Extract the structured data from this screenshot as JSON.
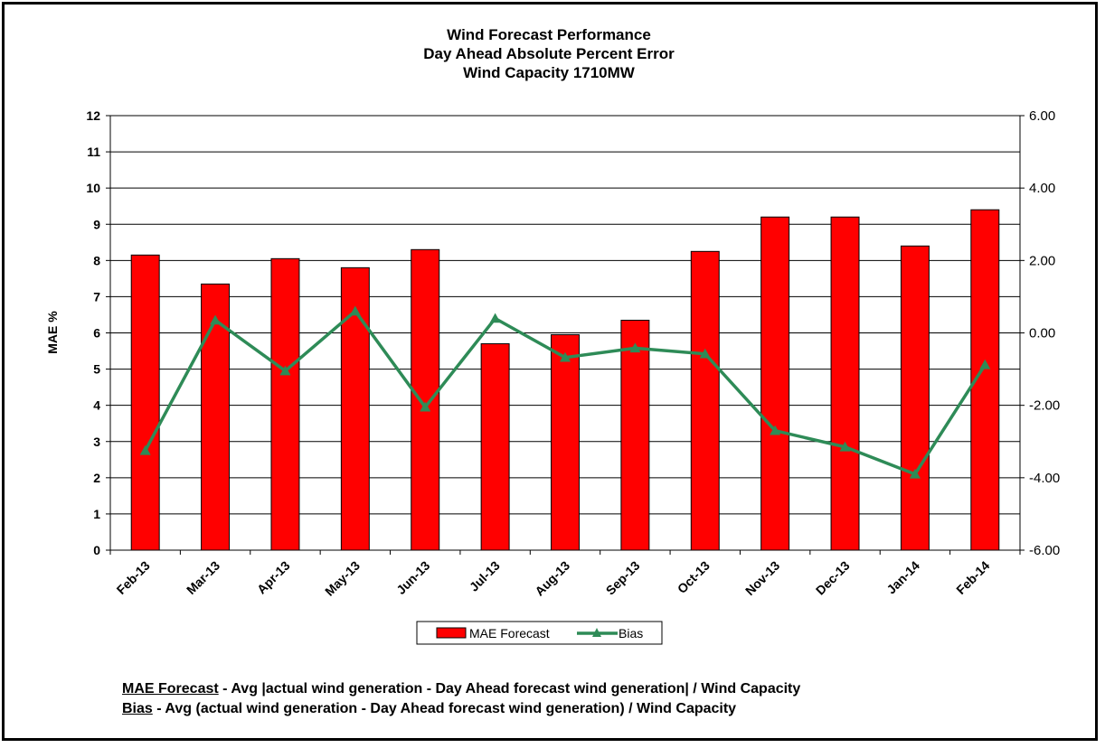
{
  "chart_data": {
    "type": "bar+line",
    "title_lines": [
      "Wind Forecast Performance",
      "Day Ahead Absolute Percent Error",
      "Wind Capacity 1710MW"
    ],
    "categories": [
      "Feb-13",
      "Mar-13",
      "Apr-13",
      "May-13",
      "Jun-13",
      "Jul-13",
      "Aug-13",
      "Sep-13",
      "Oct-13",
      "Nov-13",
      "Dec-13",
      "Jan-14",
      "Feb-14"
    ],
    "series": [
      {
        "name": "MAE Forecast",
        "type": "bar",
        "axis": "left",
        "color": "#ff0000",
        "values": [
          8.15,
          7.35,
          8.05,
          7.8,
          8.3,
          5.7,
          5.95,
          6.35,
          8.25,
          9.2,
          9.2,
          8.4,
          9.4
        ]
      },
      {
        "name": "Bias",
        "type": "line",
        "axis": "right",
        "color": "#2e8b57",
        "marker": "triangle",
        "values": [
          -3.25,
          0.35,
          -1.05,
          0.6,
          -2.05,
          0.4,
          -0.68,
          -0.42,
          -0.58,
          -2.7,
          -3.15,
          -3.9,
          -0.88
        ]
      }
    ],
    "ylabel": "MAE %",
    "ylim": [
      0,
      12
    ],
    "yticks": [
      "0",
      "1",
      "2",
      "3",
      "4",
      "5",
      "6",
      "7",
      "8",
      "9",
      "10",
      "11",
      "12"
    ],
    "y2lim": [
      -6,
      6
    ],
    "y2ticks": [
      "-6.00",
      "-4.00",
      "-2.00",
      "0.00",
      "2.00",
      "4.00",
      "6.00"
    ],
    "grid": true,
    "legend_position": "bottom-center"
  },
  "notes": {
    "mae_term": "MAE Forecast",
    "mae_text": " - Avg |actual wind generation - Day Ahead forecast wind generation| / Wind Capacity",
    "bias_term": "Bias",
    "bias_text": " - Avg (actual wind generation - Day Ahead forecast wind generation) / Wind Capacity"
  }
}
